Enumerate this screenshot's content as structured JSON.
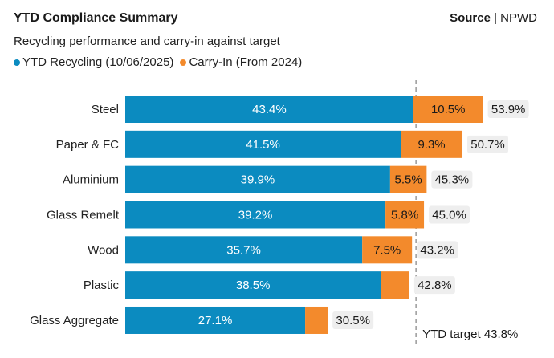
{
  "header": {
    "title": "YTD Compliance Summary",
    "source_label": "Source",
    "source_separator": " | ",
    "source_value": "NPWD",
    "subtitle": "Recycling performance and carry-in against target"
  },
  "legend": [
    {
      "label": "YTD Recycling (10/06/2025)",
      "color": "#0b8bc0"
    },
    {
      "label": "Carry-In (From 2024)",
      "color": "#f38a2c"
    }
  ],
  "chart_data": {
    "type": "bar",
    "orientation": "horizontal",
    "stacked": true,
    "title": "YTD Compliance Summary",
    "subtitle": "Recycling performance and carry-in against target",
    "categories": [
      "Steel",
      "Paper & FC",
      "Aluminium",
      "Glass Remelt",
      "Wood",
      "Plastic",
      "Glass Aggregate"
    ],
    "series": [
      {
        "name": "YTD Recycling (10/06/2025)",
        "color": "#0b8bc0",
        "values": [
          43.4,
          41.5,
          39.9,
          39.2,
          35.7,
          38.5,
          27.1
        ],
        "labels": [
          "43.4%",
          "41.5%",
          "39.9%",
          "39.2%",
          "35.7%",
          "38.5%",
          "27.1%"
        ]
      },
      {
        "name": "Carry-In (From 2024)",
        "color": "#f38a2c",
        "values": [
          10.5,
          9.3,
          5.5,
          5.8,
          7.5,
          4.3,
          3.4
        ],
        "labels": [
          "10.5%",
          "9.3%",
          "5.5%",
          "5.8%",
          "7.5%",
          "",
          ""
        ]
      }
    ],
    "totals": [
      "53.9%",
      "50.7%",
      "45.3%",
      "45.0%",
      "43.2%",
      "42.8%",
      "30.5%"
    ],
    "target": {
      "value": 43.8,
      "label": "YTD target 43.8%"
    },
    "xlim": [
      0,
      70
    ],
    "grid": false,
    "legend_position": "top-left"
  }
}
